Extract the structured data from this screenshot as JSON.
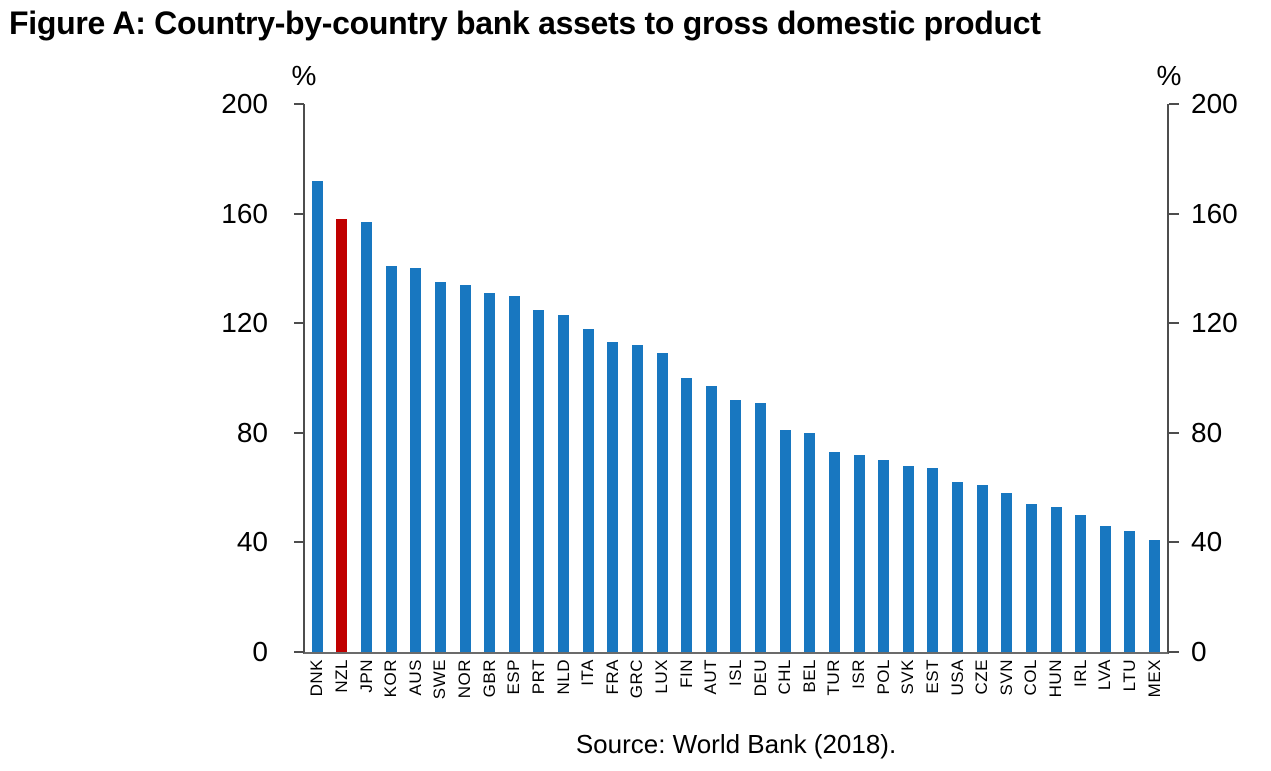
{
  "title": "Figure A: Country-by-country bank assets to gross domestic product",
  "source": "Source: World Bank (2018).",
  "axes": {
    "left_unit": "%",
    "right_unit": "%"
  },
  "chart_data": {
    "type": "bar",
    "title": "Country-by-country bank assets to gross domestic product",
    "xlabel": "",
    "ylabel": "%",
    "ylim": [
      0,
      200
    ],
    "yticks": [
      0,
      40,
      80,
      120,
      160,
      200
    ],
    "grid": false,
    "legend": "none",
    "bar_color": "#1877c0",
    "highlight_color": "#c00000",
    "highlight_category": "NZL",
    "categories": [
      "DNK",
      "NZL",
      "JPN",
      "KOR",
      "AUS",
      "SWE",
      "NOR",
      "GBR",
      "ESP",
      "PRT",
      "NLD",
      "ITA",
      "FRA",
      "GRC",
      "LUX",
      "FIN",
      "AUT",
      "ISL",
      "DEU",
      "CHL",
      "BEL",
      "TUR",
      "ISR",
      "POL",
      "SVK",
      "EST",
      "USA",
      "CZE",
      "SVN",
      "COL",
      "HUN",
      "IRL",
      "LVA",
      "LTU",
      "MEX"
    ],
    "values": [
      172,
      158,
      157,
      141,
      140,
      135,
      134,
      131,
      130,
      125,
      123,
      118,
      113,
      112,
      109,
      100,
      97,
      92,
      91,
      81,
      80,
      73,
      72,
      70,
      68,
      67,
      62,
      61,
      58,
      54,
      53,
      50,
      46,
      44,
      41
    ]
  }
}
